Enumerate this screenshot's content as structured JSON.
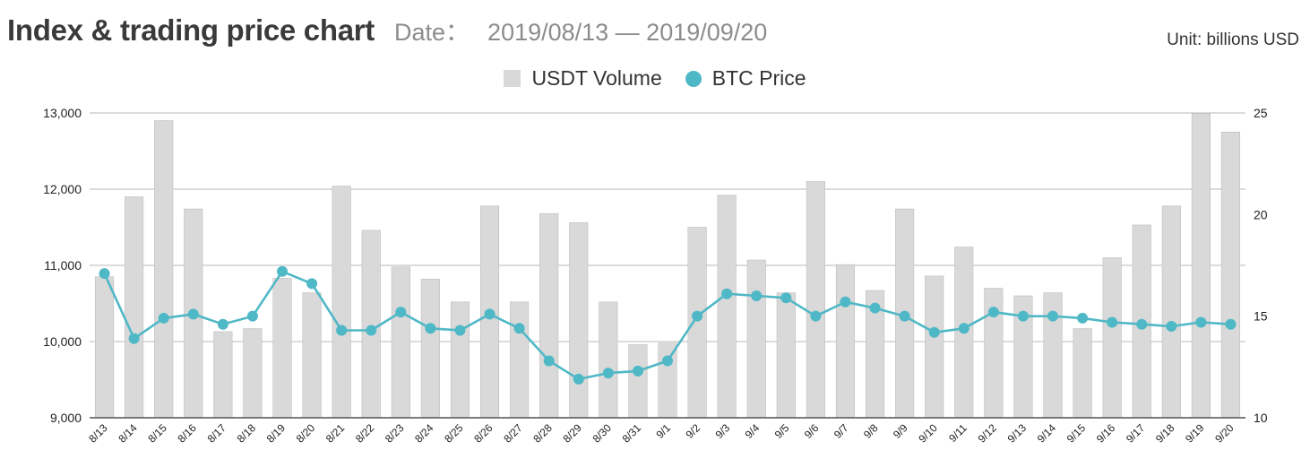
{
  "header": {
    "title": "Index & trading price chart",
    "date_label": "Date：",
    "date_range": "2019/08/13 — 2019/09/20",
    "unit": "Unit: billions USD"
  },
  "colors": {
    "bar": "#d9d9d9",
    "bar_stroke": "#bdbdbd",
    "line": "#4fb8c6",
    "grid": "#c8c8c8",
    "axis": "#555555"
  },
  "chart_data": {
    "type": "bar+line",
    "title": "Index & trading price chart",
    "categories": [
      "8/13",
      "8/14",
      "8/15",
      "8/16",
      "8/17",
      "8/18",
      "8/19",
      "8/20",
      "8/21",
      "8/22",
      "8/23",
      "8/24",
      "8/25",
      "8/26",
      "8/27",
      "8/28",
      "8/29",
      "8/30",
      "8/31",
      "9/1",
      "9/2",
      "9/3",
      "9/4",
      "9/5",
      "9/6",
      "9/7",
      "9/8",
      "9/9",
      "9/10",
      "9/11",
      "9/12",
      "9/13",
      "9/14",
      "9/15",
      "9/16",
      "9/17",
      "9/18",
      "9/19",
      "9/20"
    ],
    "series": [
      {
        "name": "USDT Volume",
        "type": "bar",
        "axis": "left",
        "values": [
          10850,
          11900,
          12900,
          11740,
          10130,
          10170,
          10830,
          10640,
          12040,
          11460,
          10980,
          10820,
          10520,
          11780,
          10520,
          11680,
          11560,
          10520,
          9960,
          9980,
          11500,
          11920,
          11070,
          10640,
          12100,
          11010,
          10670,
          11740,
          10860,
          11240,
          10700,
          10600,
          10640,
          10170,
          11100,
          11530,
          11780,
          12990,
          12750
        ]
      },
      {
        "name": "BTC Price",
        "type": "line",
        "axis": "right",
        "values": [
          17.1,
          13.9,
          14.9,
          15.1,
          14.6,
          15.0,
          17.2,
          16.6,
          14.3,
          14.3,
          15.2,
          14.4,
          14.3,
          15.1,
          14.4,
          12.8,
          11.9,
          12.2,
          12.3,
          12.8,
          15.0,
          16.1,
          16.0,
          15.9,
          15.0,
          15.7,
          15.4,
          15.0,
          14.2,
          14.4,
          15.2,
          15.0,
          15.0,
          14.9,
          14.7,
          14.6,
          14.5,
          14.7,
          14.6
        ]
      }
    ],
    "y_left": {
      "min": 9000,
      "max": 13000,
      "ticks": [
        "9,000",
        "10,000",
        "11,000",
        "12,000",
        "13,000"
      ],
      "tick_values": [
        9000,
        10000,
        11000,
        12000,
        13000
      ]
    },
    "y_right": {
      "min": 10,
      "max": 25,
      "ticks": [
        "10",
        "15",
        "20",
        "25"
      ],
      "tick_values": [
        10,
        15,
        20,
        25
      ]
    },
    "grid": true,
    "legend_position": "top-center"
  }
}
